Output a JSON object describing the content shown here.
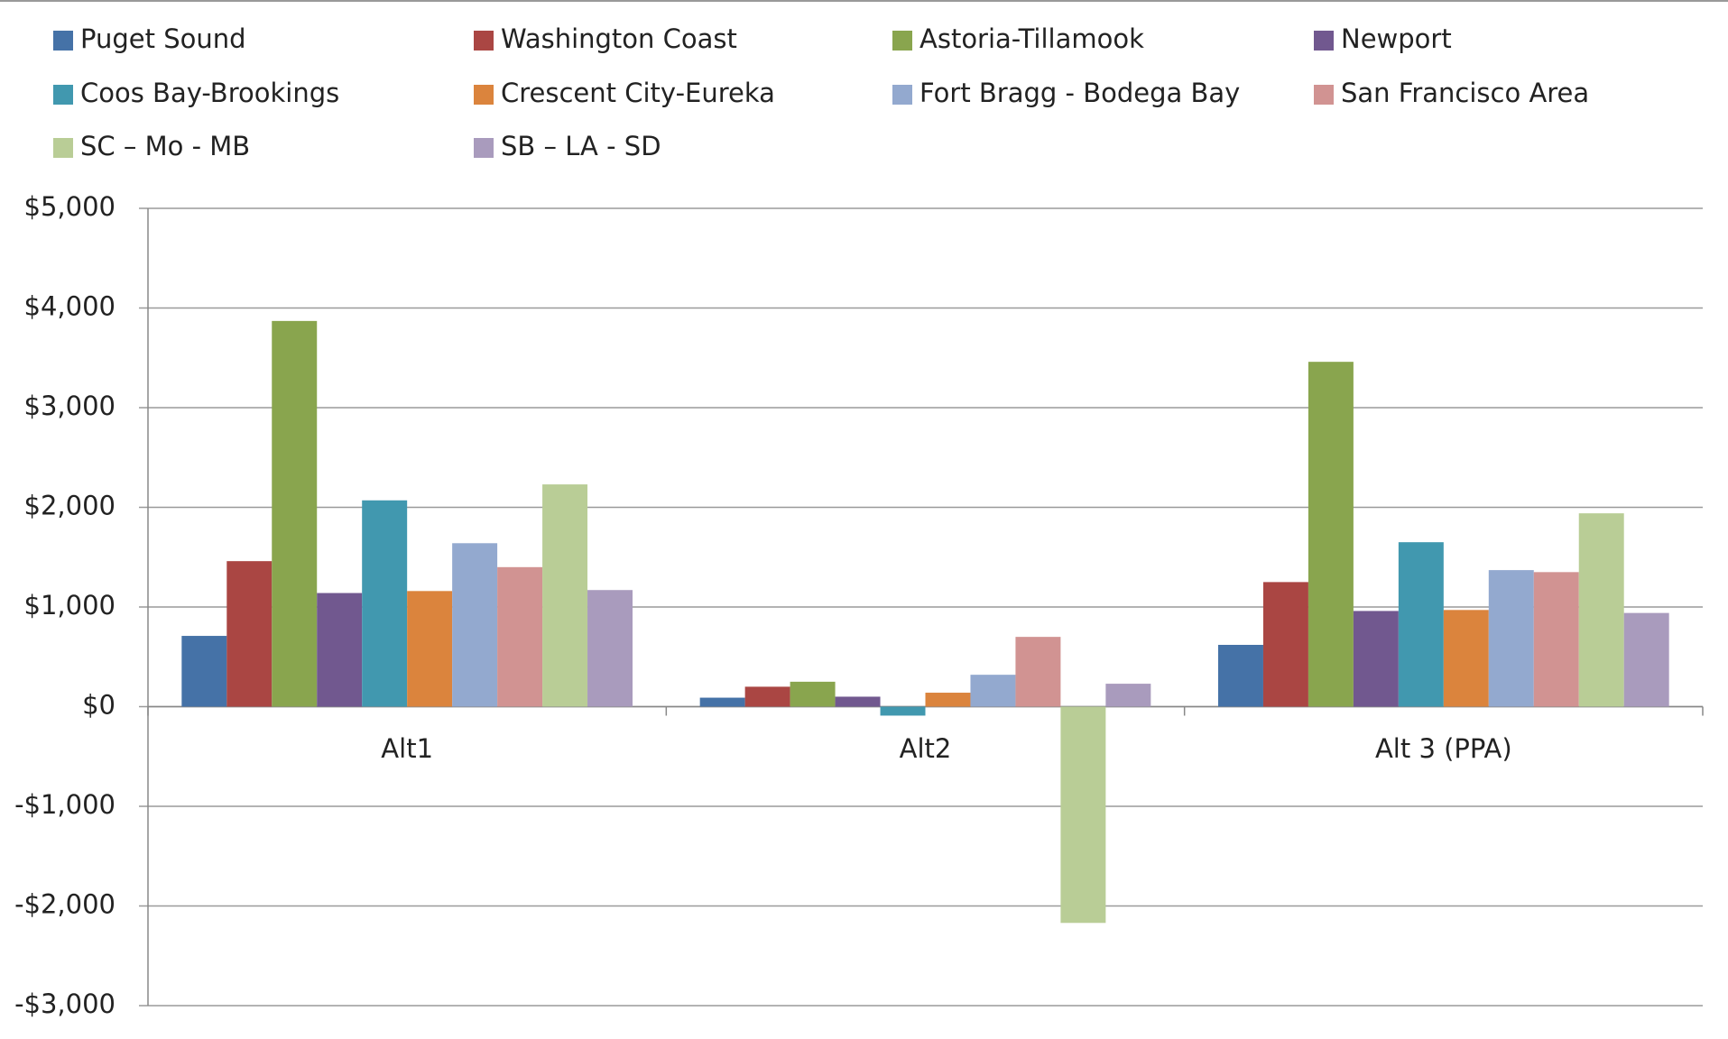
{
  "chart_data": {
    "type": "bar",
    "categories": [
      "Alt1",
      "Alt2",
      "Alt 3 (PPA)"
    ],
    "series": [
      {
        "name": "Puget Sound",
        "color": "#4572a7",
        "values": [
          710,
          90,
          620
        ]
      },
      {
        "name": "Washington Coast",
        "color": "#aa4643",
        "values": [
          1460,
          200,
          1250
        ]
      },
      {
        "name": "Astoria-Tillamook",
        "color": "#89a54e",
        "values": [
          3870,
          250,
          3460
        ]
      },
      {
        "name": "Newport",
        "color": "#71588f",
        "values": [
          1140,
          100,
          960
        ]
      },
      {
        "name": "Coos Bay-Brookings",
        "color": "#4198af",
        "values": [
          2070,
          -90,
          1650
        ]
      },
      {
        "name": "Crescent City-Eureka",
        "color": "#db843d",
        "values": [
          1160,
          140,
          970
        ]
      },
      {
        "name": "Fort Bragg - Bodega Bay",
        "color": "#93a9cf",
        "values": [
          1640,
          320,
          1370
        ]
      },
      {
        "name": "San Francisco Area",
        "color": "#d19392",
        "values": [
          1400,
          700,
          1350
        ]
      },
      {
        "name": "SC – Mo - MB",
        "color": "#b9cd96",
        "values": [
          2230,
          -2170,
          1940
        ]
      },
      {
        "name": "SB – LA - SD",
        "color": "#a99bbd",
        "values": [
          1170,
          230,
          940
        ]
      }
    ],
    "ylim": [
      -3000,
      5000
    ],
    "yticks": [
      {
        "value": -3000,
        "label": "-$3,000"
      },
      {
        "value": -2000,
        "label": "-$2,000"
      },
      {
        "value": -1000,
        "label": "-$1,000"
      },
      {
        "value": 0,
        "label": "$0"
      },
      {
        "value": 1000,
        "label": "$1,000"
      },
      {
        "value": 2000,
        "label": "$2,000"
      },
      {
        "value": 3000,
        "label": "$3,000"
      },
      {
        "value": 4000,
        "label": "$4,000"
      },
      {
        "value": 5000,
        "label": "$5,000"
      }
    ],
    "grid": true,
    "legend": "top"
  }
}
